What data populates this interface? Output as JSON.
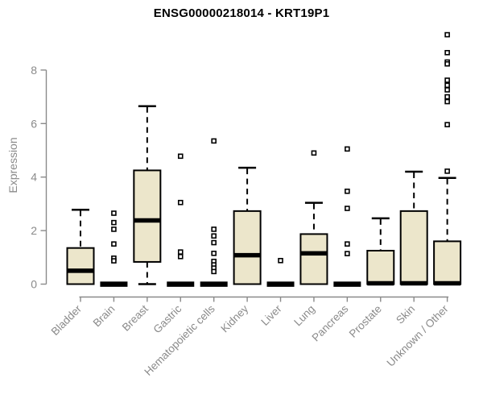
{
  "chart_data": {
    "type": "boxplot",
    "title": "ENSG00000218014 - KRT19P1",
    "ylabel": "Expression",
    "xlabel": "",
    "ylim": [
      0,
      9.5
    ],
    "yticks": [
      0,
      2,
      4,
      6,
      8
    ],
    "grid": false,
    "legend": "none",
    "categories": [
      "Bladder",
      "Brain",
      "Breast",
      "Gastric",
      "Hematopoietic cells",
      "Kidney",
      "Liver",
      "Lung",
      "Pancreas",
      "Prostate",
      "Skin",
      "Unknown / Other"
    ],
    "series": [
      {
        "category": "Bladder",
        "q1": 0,
        "median": 0.5,
        "q3": 1.35,
        "whisker_low": 0,
        "whisker_high": 2.78,
        "outliers": []
      },
      {
        "category": "Brain",
        "q1": 0,
        "median": 0.02,
        "q3": 0.06,
        "whisker_low": 0,
        "whisker_high": 0.06,
        "outliers": [
          2.65,
          2.3,
          2.05,
          1.5,
          0.97,
          0.87
        ]
      },
      {
        "category": "Breast",
        "q1": 0.83,
        "median": 2.38,
        "q3": 4.25,
        "whisker_low": 0,
        "whisker_high": 6.65,
        "outliers": []
      },
      {
        "category": "Gastric",
        "q1": 0,
        "median": 0.02,
        "q3": 0.06,
        "whisker_low": 0,
        "whisker_high": 0.06,
        "outliers": [
          4.78,
          3.05,
          1.2,
          1.03
        ]
      },
      {
        "category": "Hematopoietic cells",
        "q1": 0,
        "median": 0.02,
        "q3": 0.06,
        "whisker_low": 0,
        "whisker_high": 0.06,
        "outliers": [
          5.35,
          2.05,
          1.8,
          1.55,
          1.15,
          0.85,
          0.72,
          0.6,
          0.47
        ]
      },
      {
        "category": "Kidney",
        "q1": 0,
        "median": 1.08,
        "q3": 2.73,
        "whisker_low": 0,
        "whisker_high": 4.35,
        "outliers": []
      },
      {
        "category": "Liver",
        "q1": 0,
        "median": 0.02,
        "q3": 0.06,
        "whisker_low": 0,
        "whisker_high": 0.06,
        "outliers": [
          0.88
        ]
      },
      {
        "category": "Lung",
        "q1": 0,
        "median": 1.15,
        "q3": 1.87,
        "whisker_low": 0,
        "whisker_high": 3.04,
        "outliers": [
          4.9
        ]
      },
      {
        "category": "Pancreas",
        "q1": 0,
        "median": 0.02,
        "q3": 0.06,
        "whisker_low": 0,
        "whisker_high": 0.06,
        "outliers": [
          5.05,
          3.47,
          2.83,
          1.5,
          1.14
        ]
      },
      {
        "category": "Prostate",
        "q1": 0,
        "median": 0.03,
        "q3": 1.25,
        "whisker_low": 0,
        "whisker_high": 2.46,
        "outliers": []
      },
      {
        "category": "Skin",
        "q1": 0,
        "median": 0.03,
        "q3": 2.73,
        "whisker_low": 0,
        "whisker_high": 4.2,
        "outliers": []
      },
      {
        "category": "Unknown / Other",
        "q1": 0,
        "median": 0.03,
        "q3": 1.6,
        "whisker_low": 0,
        "whisker_high": 3.97,
        "outliers": [
          9.32,
          8.65,
          8.3,
          8.23,
          7.62,
          7.43,
          7.26,
          7.0,
          6.82,
          5.96,
          4.22
        ]
      }
    ],
    "colors": {
      "background": "#ffffff",
      "box_fill": "#ECE6CB",
      "box_border": "#000000",
      "median": "#000000",
      "outlier_fill": "#ffffff",
      "axis": "#8a8a8a",
      "tick_label": "#8a8a8a",
      "title": "#000000"
    }
  }
}
